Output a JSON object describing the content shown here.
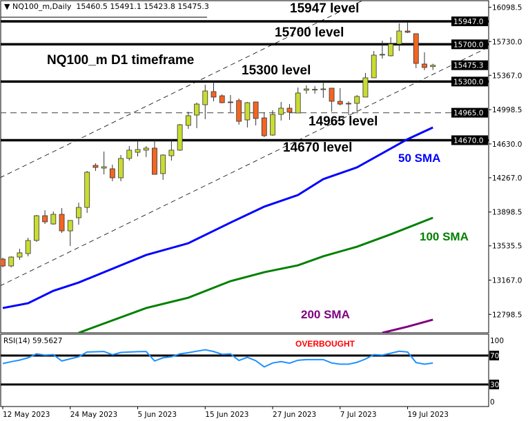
{
  "header": {
    "symbol": "NQ100_m,Daily",
    "ohlc": "15460.5 15491.1 15423.8 15475.3"
  },
  "annotations": {
    "title": "NQ100_m D1 timeframe",
    "level_15947": "15947 level",
    "level_15700": "15700 level",
    "level_15300": "15300 level",
    "level_14965": "14965 level",
    "level_14670": "14670 level",
    "sma50": "50 SMA",
    "sma100": "100 SMA",
    "sma200": "200 SMA",
    "overbought": "OVERBOUGHT"
  },
  "colors": {
    "bull": "#c8dc32",
    "bear": "#f26522",
    "sma50": "#0000ff",
    "sma100": "#008000",
    "sma200": "#800080",
    "rsi": "#1e90ff",
    "overbought": "#ff0000"
  },
  "chart_data": [
    {
      "type": "candlestick",
      "ylim": [
        12601,
        16176
      ],
      "y_ticks": [
        "16098.5",
        "15730.0",
        "15367.0",
        "14998.5",
        "14630.0",
        "14267.0",
        "13898.5",
        "13535.5",
        "13167.0",
        "12798.5"
      ],
      "x_ticks": [
        {
          "date": "2023-05-12",
          "label": "12 May 2023"
        },
        {
          "date": "2023-05-24",
          "label": "24 May 2023"
        },
        {
          "date": "2023-06-05",
          "label": "5 Jun 2023"
        },
        {
          "date": "2023-06-15",
          "label": "15 Jun 2023"
        },
        {
          "date": "2023-06-27",
          "label": "27 Jun 2023"
        },
        {
          "date": "2023-07-07",
          "label": "7 Jul 2023"
        },
        {
          "date": "2023-07-19",
          "label": "19 Jul 2023"
        }
      ],
      "current_price": "15475.3",
      "levels": [
        {
          "value": 15947,
          "label": "15947.0",
          "style": "solid"
        },
        {
          "value": 15700,
          "label": "15700.0",
          "style": "solid"
        },
        {
          "value": 15300,
          "label": "15300.0",
          "style": "solid"
        },
        {
          "value": 14965,
          "label": "14965.0",
          "style": "dashed"
        },
        {
          "value": 14670,
          "label": "14670.0",
          "style": "solid"
        }
      ],
      "channel": [
        {
          "from": [
            "2023-05-12",
            14281
          ],
          "to": [
            "2023-07-24",
            16539
          ]
        },
        {
          "from": [
            "2023-05-12",
            13119
          ],
          "to": [
            "2023-07-24",
            15377
          ]
        }
      ],
      "candles": [
        [
          "2023-05-12",
          13393,
          13408,
          13304,
          13319
        ],
        [
          "2023-05-15",
          13319,
          13423,
          13304,
          13415
        ],
        [
          "2023-05-16",
          13415,
          13504,
          13385,
          13460
        ],
        [
          "2023-05-17",
          13452,
          13622,
          13423,
          13593
        ],
        [
          "2023-05-18",
          13593,
          13867,
          13578,
          13859
        ],
        [
          "2023-05-19",
          13859,
          13918,
          13770,
          13793
        ],
        [
          "2023-05-22",
          13770,
          13904,
          13763,
          13874
        ],
        [
          "2023-05-23",
          13874,
          13941,
          13674,
          13696
        ],
        [
          "2023-05-24",
          13696,
          13808,
          13534,
          13808
        ],
        [
          "2023-05-25",
          13837,
          13999,
          13763,
          13948
        ],
        [
          "2023-05-26",
          13948,
          14340,
          13889,
          14326
        ],
        [
          "2023-05-29",
          14400,
          14422,
          14340,
          14377
        ],
        [
          "2023-05-30",
          14370,
          14548,
          14303,
          14385
        ],
        [
          "2023-05-31",
          14363,
          14407,
          14229,
          14266
        ],
        [
          "2023-06-01",
          14266,
          14511,
          14229,
          14474
        ],
        [
          "2023-06-02",
          14474,
          14607,
          14451,
          14563
        ],
        [
          "2023-06-05",
          14540,
          14666,
          14496,
          14570
        ],
        [
          "2023-06-06",
          14563,
          14607,
          14489,
          14585
        ],
        [
          "2023-06-07",
          14585,
          14674,
          14303,
          14303
        ],
        [
          "2023-06-08",
          14311,
          14518,
          14244,
          14511
        ],
        [
          "2023-06-09",
          14503,
          14674,
          14451,
          14563
        ],
        [
          "2023-06-12",
          14563,
          14844,
          14555,
          14836
        ],
        [
          "2023-06-13",
          14829,
          14977,
          14792,
          14933
        ],
        [
          "2023-06-14",
          14940,
          15073,
          14799,
          15058
        ],
        [
          "2023-06-15",
          15051,
          15266,
          14896,
          15199
        ],
        [
          "2023-06-16",
          15192,
          15296,
          15088,
          15133
        ],
        [
          "2023-06-19",
          15147,
          15162,
          15066,
          15073
        ],
        [
          "2023-06-20",
          15081,
          15155,
          14970,
          15075
        ],
        [
          "2023-06-21",
          15096,
          15118,
          14836,
          14873
        ],
        [
          "2023-06-22",
          14888,
          15081,
          14807,
          15073
        ],
        [
          "2023-06-23",
          15081,
          15081,
          14829,
          14903
        ],
        [
          "2023-06-26",
          14910,
          14970,
          14703,
          14718
        ],
        [
          "2023-06-27",
          14725,
          14992,
          14718,
          14947
        ],
        [
          "2023-06-28",
          14947,
          15081,
          14881,
          15014
        ],
        [
          "2023-06-29",
          15014,
          15058,
          14888,
          14970
        ],
        [
          "2023-06-30",
          14962,
          15236,
          14962,
          15177
        ],
        [
          "2023-07-03",
          15207,
          15259,
          15170,
          15221
        ],
        [
          "2023-07-04",
          15214,
          15251,
          15170,
          15216
        ],
        [
          "2023-07-05",
          15214,
          15296,
          15125,
          15221
        ],
        [
          "2023-07-06",
          15229,
          15229,
          14977,
          15088
        ],
        [
          "2023-07-07",
          15088,
          15229,
          15044,
          15058
        ],
        [
          "2023-07-10",
          15066,
          15088,
          14940,
          15062
        ],
        [
          "2023-07-11",
          15066,
          15155,
          14977,
          15140
        ],
        [
          "2023-07-12",
          15133,
          15392,
          15133,
          15340
        ],
        [
          "2023-07-13",
          15340,
          15628,
          15340,
          15584
        ],
        [
          "2023-07-14",
          15588,
          15740,
          15547,
          15592
        ],
        [
          "2023-07-17",
          15577,
          15777,
          15570,
          15703
        ],
        [
          "2023-07-18",
          15703,
          15925,
          15629,
          15843
        ],
        [
          "2023-07-19",
          15843,
          15940,
          15821,
          15829
        ],
        [
          "2023-07-20",
          15814,
          15814,
          15444,
          15495
        ],
        [
          "2023-07-21",
          15488,
          15614,
          15422,
          15451
        ],
        [
          "2023-07-24",
          15460.5,
          15491.1,
          15423.8,
          15475.3
        ]
      ],
      "series": [
        {
          "name": "50 SMA",
          "points": [
            [
              "2023-05-12",
              12867
            ],
            [
              "2023-05-17",
              12919
            ],
            [
              "2023-05-22",
              13052
            ],
            [
              "2023-05-25",
              13141
            ],
            [
              "2023-06-06",
              13437
            ],
            [
              "2023-06-13",
              13563
            ],
            [
              "2023-06-20",
              13785
            ],
            [
              "2023-06-26",
              13956
            ],
            [
              "2023-06-30",
              14081
            ],
            [
              "2023-07-05",
              14252
            ],
            [
              "2023-07-11",
              14378
            ],
            [
              "2023-07-19",
              14681
            ],
            [
              "2023-07-24",
              14807
            ]
          ]
        },
        {
          "name": "100 SMA",
          "points": [
            [
              "2023-05-25",
              12601
            ],
            [
              "2023-06-06",
              12867
            ],
            [
              "2023-06-13",
              12978
            ],
            [
              "2023-06-20",
              13156
            ],
            [
              "2023-06-26",
              13252
            ],
            [
              "2023-06-30",
              13326
            ],
            [
              "2023-07-05",
              13423
            ],
            [
              "2023-07-11",
              13526
            ],
            [
              "2023-07-17",
              13659
            ],
            [
              "2023-07-24",
              13837
            ]
          ]
        },
        {
          "name": "200 SMA",
          "points": [
            [
              "2023-07-14",
              12601
            ],
            [
              "2023-07-19",
              12667
            ],
            [
              "2023-07-24",
              12742
            ]
          ]
        }
      ]
    },
    {
      "type": "line",
      "title": "RSI(14) 59.5627",
      "ylim": [
        0,
        100
      ],
      "y_ticks": [
        "100",
        "70",
        "30",
        "0"
      ],
      "levels": [
        70,
        30
      ],
      "values": [
        58.9,
        61.5,
        63.7,
        66.9,
        72.3,
        70.6,
        71.3,
        62.5,
        65.5,
        68.3,
        74.9,
        75.2,
        75.6,
        71.1,
        74.3,
        74.9,
        75.3,
        75.6,
        62.5,
        66.9,
        68.3,
        72.3,
        73.9,
        76,
        78,
        75.6,
        71.7,
        72.3,
        63.2,
        67.6,
        62.9,
        54.3,
        59.7,
        61.6,
        59.4,
        63.5,
        64.4,
        64.4,
        64.4,
        59.7,
        58.1,
        58.1,
        60.6,
        65.1,
        71.3,
        70.6,
        73.2,
        75.9,
        74.9,
        60.3,
        58.1,
        59.6
      ]
    }
  ]
}
